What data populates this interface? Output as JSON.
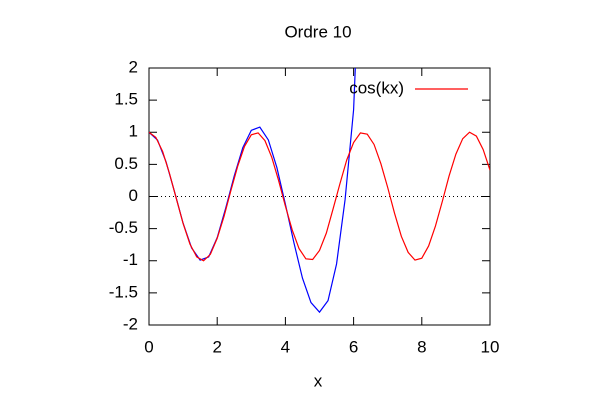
{
  "chart_data": {
    "type": "line",
    "title": "Ordre 10",
    "x_label": "x",
    "xlim": [
      0,
      10
    ],
    "ylim": [
      -2,
      2
    ],
    "xticks": [
      0,
      2,
      4,
      6,
      8,
      10
    ],
    "yticks": [
      -2,
      -1.5,
      -1,
      -0.5,
      0,
      0.5,
      1,
      1.5,
      2
    ],
    "zeroaxis": true,
    "legend": "top right",
    "series": [
      {
        "color": "#0000ff",
        "x": [
          0,
          0.25,
          0.5,
          0.75,
          1,
          1.25,
          1.5,
          1.75,
          2,
          2.25,
          2.5,
          2.75,
          3,
          3.25,
          3.5,
          3.75,
          4,
          4.25,
          4.5,
          4.75,
          5,
          5.25,
          5.5,
          5.75,
          6,
          6.05
        ],
        "values": [
          1,
          0.878,
          0.54,
          0.071,
          -0.416,
          -0.801,
          -0.99,
          -0.94,
          -0.64,
          -0.18,
          0.32,
          0.76,
          1.03,
          1.08,
          0.88,
          0.45,
          -0.12,
          -0.72,
          -1.27,
          -1.65,
          -1.8,
          -1.62,
          -1.05,
          -0.05,
          1.35,
          2.0
        ]
      },
      {
        "name": "cos(kx)",
        "color": "#ff0000",
        "x": [
          0,
          0.2,
          0.4,
          0.6,
          0.8,
          1,
          1.2,
          1.4,
          1.6,
          1.8,
          2,
          2.2,
          2.4,
          2.6,
          2.8,
          3,
          3.2,
          3.4,
          3.6,
          3.8,
          4,
          4.2,
          4.4,
          4.6,
          4.8,
          5,
          5.2,
          5.4,
          5.6,
          5.8,
          6,
          6.2,
          6.4,
          6.6,
          6.8,
          7,
          7.2,
          7.4,
          7.6,
          7.8,
          8,
          8.2,
          8.4,
          8.6,
          8.8,
          9,
          9.2,
          9.4,
          9.6,
          9.8,
          10
        ],
        "values": [
          1,
          0.92,
          0.7,
          0.36,
          -0.03,
          -0.42,
          -0.74,
          -0.94,
          -1,
          -0.9,
          -0.65,
          -0.31,
          0.09,
          0.47,
          0.78,
          0.96,
          0.99,
          0.87,
          0.61,
          0.25,
          -0.15,
          -0.52,
          -0.81,
          -0.97,
          -0.98,
          -0.84,
          -0.57,
          -0.19,
          0.2,
          0.57,
          0.84,
          0.99,
          0.97,
          0.81,
          0.51,
          0.14,
          -0.26,
          -0.62,
          -0.87,
          -0.99,
          -0.96,
          -0.77,
          -0.46,
          -0.08,
          0.32,
          0.66,
          0.9,
          1,
          0.94,
          0.73,
          0.41
        ]
      }
    ]
  }
}
